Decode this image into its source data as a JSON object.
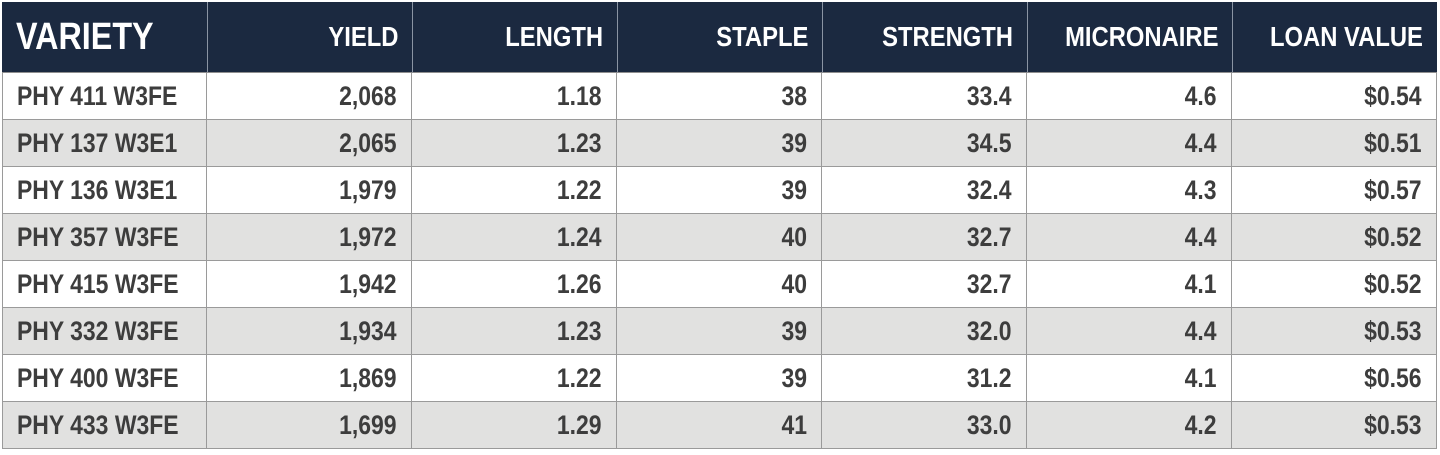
{
  "colors": {
    "header_bg": "#1b2940",
    "header_text": "#ffffff",
    "row_alt_bg": "#e1e1e0",
    "row_bg": "#ffffff",
    "cell_text": "#3d3d3d",
    "border": "#9a9a9a"
  },
  "table": {
    "columns": [
      {
        "key": "variety",
        "label": "VARIETY",
        "align": "left"
      },
      {
        "key": "yield",
        "label": "YIELD",
        "align": "right"
      },
      {
        "key": "length",
        "label": "LENGTH",
        "align": "right"
      },
      {
        "key": "staple",
        "label": "STAPLE",
        "align": "right"
      },
      {
        "key": "strength",
        "label": "STRENGTH",
        "align": "right"
      },
      {
        "key": "micronaire",
        "label": "MICRONAIRE",
        "align": "right"
      },
      {
        "key": "loan_value",
        "label": "LOAN VALUE",
        "align": "right"
      }
    ],
    "rows": [
      [
        "PHY 411 W3FE",
        "2,068",
        "1.18",
        "38",
        "33.4",
        "4.6",
        "$0.54"
      ],
      [
        "PHY 137 W3E1",
        "2,065",
        "1.23",
        "39",
        "34.5",
        "4.4",
        "$0.51"
      ],
      [
        "PHY 136 W3E1",
        "1,979",
        "1.22",
        "39",
        "32.4",
        "4.3",
        "$0.57"
      ],
      [
        "PHY 357 W3FE",
        "1,972",
        "1.24",
        "40",
        "32.7",
        "4.4",
        "$0.52"
      ],
      [
        "PHY 415 W3FE",
        "1,942",
        "1.26",
        "40",
        "32.7",
        "4.1",
        "$0.52"
      ],
      [
        "PHY 332 W3FE",
        "1,934",
        "1.23",
        "39",
        "32.0",
        "4.4",
        "$0.53"
      ],
      [
        "PHY 400 W3FE",
        "1,869",
        "1.22",
        "39",
        "31.2",
        "4.1",
        "$0.56"
      ],
      [
        "PHY 433 W3FE",
        "1,699",
        "1.29",
        "41",
        "33.0",
        "4.2",
        "$0.53"
      ]
    ]
  },
  "chart_data": {
    "type": "table",
    "title": "",
    "columns": [
      "VARIETY",
      "YIELD",
      "LENGTH",
      "STAPLE",
      "STRENGTH",
      "MICRONAIRE",
      "LOAN VALUE"
    ],
    "records": [
      {
        "variety": "PHY 411 W3FE",
        "yield": 2068,
        "length": 1.18,
        "staple": 38,
        "strength": 33.4,
        "micronaire": 4.6,
        "loan_value": 0.54
      },
      {
        "variety": "PHY 137 W3E1",
        "yield": 2065,
        "length": 1.23,
        "staple": 39,
        "strength": 34.5,
        "micronaire": 4.4,
        "loan_value": 0.51
      },
      {
        "variety": "PHY 136 W3E1",
        "yield": 1979,
        "length": 1.22,
        "staple": 39,
        "strength": 32.4,
        "micronaire": 4.3,
        "loan_value": 0.57
      },
      {
        "variety": "PHY 357 W3FE",
        "yield": 1972,
        "length": 1.24,
        "staple": 40,
        "strength": 32.7,
        "micronaire": 4.4,
        "loan_value": 0.52
      },
      {
        "variety": "PHY 415 W3FE",
        "yield": 1942,
        "length": 1.26,
        "staple": 40,
        "strength": 32.7,
        "micronaire": 4.1,
        "loan_value": 0.52
      },
      {
        "variety": "PHY 332 W3FE",
        "yield": 1934,
        "length": 1.23,
        "staple": 39,
        "strength": 32.0,
        "micronaire": 4.4,
        "loan_value": 0.53
      },
      {
        "variety": "PHY 400 W3FE",
        "yield": 1869,
        "length": 1.22,
        "staple": 39,
        "strength": 31.2,
        "micronaire": 4.1,
        "loan_value": 0.56
      },
      {
        "variety": "PHY 433 W3FE",
        "yield": 1699,
        "length": 1.29,
        "staple": 41,
        "strength": 33.0,
        "micronaire": 4.2,
        "loan_value": 0.53
      }
    ]
  }
}
